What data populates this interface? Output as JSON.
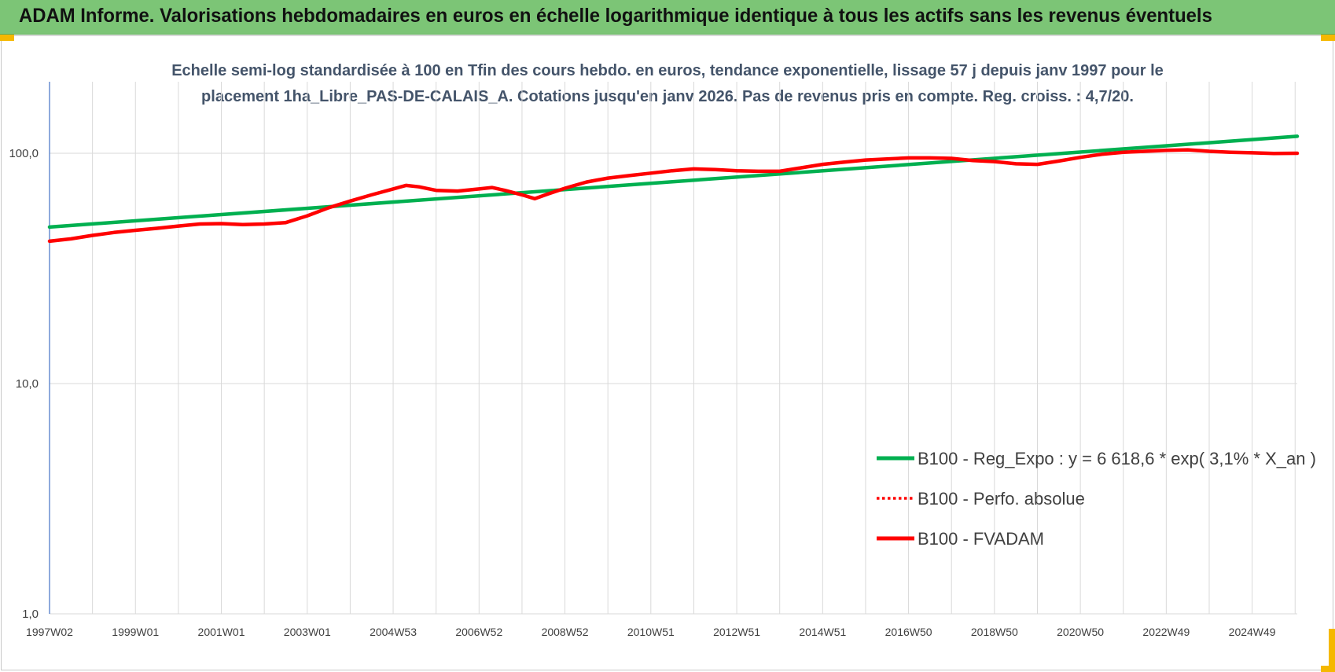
{
  "header": {
    "title": "ADAM Informe. Valorisations hebdomadaires en euros en échelle logarithmique identique à tous les actifs sans les revenus éventuels"
  },
  "colors": {
    "title_bar": "#7cc576",
    "corner_marks": "#f5b800",
    "regression_line": "#00b050",
    "fvadam_line": "#ff0000",
    "gridline": "#d9d9d9"
  },
  "chart_data": {
    "type": "line",
    "title_lines": [
      "Echelle semi-log standardisée à 100 en Tfin des cours hebdo. en euros, tendance exponentielle, lissage 57 j depuis janv 1997 pour le",
      "placement 1ha_Libre_PAS-DE-CALAIS_A. Cotations jusqu'en janv 2026. Pas de revenus pris en compte. Reg. croiss. : 4,7/20."
    ],
    "y_scale": "log",
    "ylim": [
      1,
      200
    ],
    "y_ticks": [
      {
        "value": 1,
        "label": "1,0"
      },
      {
        "value": 10,
        "label": "10,0"
      },
      {
        "value": 100,
        "label": "100,0"
      }
    ],
    "xlim": [
      1997.0,
      2026.05
    ],
    "x_ticks": [
      {
        "x": 1997.0,
        "label": "1997W02"
      },
      {
        "x": 1999.0,
        "label": "1999W01"
      },
      {
        "x": 2001.0,
        "label": "2001W01"
      },
      {
        "x": 2003.0,
        "label": "2003W01"
      },
      {
        "x": 2005.0,
        "label": "2004W53"
      },
      {
        "x": 2007.0,
        "label": "2006W52"
      },
      {
        "x": 2009.0,
        "label": "2008W52"
      },
      {
        "x": 2011.0,
        "label": "2010W51"
      },
      {
        "x": 2013.0,
        "label": "2012W51"
      },
      {
        "x": 2015.0,
        "label": "2014W51"
      },
      {
        "x": 2017.0,
        "label": "2016W50"
      },
      {
        "x": 2019.0,
        "label": "2018W50"
      },
      {
        "x": 2021.0,
        "label": "2020W50"
      },
      {
        "x": 2023.0,
        "label": "2022W49"
      },
      {
        "x": 2025.0,
        "label": "2024W49"
      }
    ],
    "grid": true,
    "legend_position": "lower-right",
    "series": [
      {
        "name": "B100 - Reg_Expo : y = 6 618,6 * exp( 3,1% *  X_an )",
        "color": "#00b050",
        "style": "solid",
        "points": [
          [
            1997.0,
            47.8
          ],
          [
            2026.05,
            118.5
          ]
        ]
      },
      {
        "name": "B100 - Perfo. absolue",
        "color": "#ff0000",
        "style": "dotted",
        "points": []
      },
      {
        "name": "B100 - FVADAM",
        "color": "#ff0000",
        "style": "solid",
        "points": [
          [
            1997.0,
            41.5
          ],
          [
            1997.5,
            42.5
          ],
          [
            1998.0,
            44.0
          ],
          [
            1998.5,
            45.3
          ],
          [
            1999.0,
            46.3
          ],
          [
            1999.5,
            47.2
          ],
          [
            2000.0,
            48.3
          ],
          [
            2000.5,
            49.3
          ],
          [
            2001.0,
            49.5
          ],
          [
            2001.5,
            49.0
          ],
          [
            2002.0,
            49.3
          ],
          [
            2002.5,
            50.0
          ],
          [
            2003.0,
            53.5
          ],
          [
            2003.5,
            58.0
          ],
          [
            2004.0,
            62.0
          ],
          [
            2004.5,
            66.0
          ],
          [
            2005.0,
            70.0
          ],
          [
            2005.3,
            72.5
          ],
          [
            2005.6,
            71.5
          ],
          [
            2006.0,
            69.0
          ],
          [
            2006.5,
            68.5
          ],
          [
            2007.0,
            70.0
          ],
          [
            2007.3,
            71.0
          ],
          [
            2007.6,
            69.0
          ],
          [
            2008.0,
            66.0
          ],
          [
            2008.3,
            63.5
          ],
          [
            2008.6,
            66.5
          ],
          [
            2009.0,
            70.5
          ],
          [
            2009.5,
            75.0
          ],
          [
            2010.0,
            78.0
          ],
          [
            2010.5,
            80.0
          ],
          [
            2011.0,
            82.0
          ],
          [
            2011.5,
            84.0
          ],
          [
            2012.0,
            85.5
          ],
          [
            2012.5,
            85.0
          ],
          [
            2013.0,
            84.0
          ],
          [
            2013.5,
            83.5
          ],
          [
            2014.0,
            83.5
          ],
          [
            2014.5,
            86.5
          ],
          [
            2015.0,
            89.5
          ],
          [
            2015.5,
            91.5
          ],
          [
            2016.0,
            93.5
          ],
          [
            2016.5,
            94.5
          ],
          [
            2017.0,
            95.5
          ],
          [
            2017.5,
            95.5
          ],
          [
            2018.0,
            95.0
          ],
          [
            2018.5,
            93.0
          ],
          [
            2019.0,
            92.0
          ],
          [
            2019.5,
            90.0
          ],
          [
            2020.0,
            89.5
          ],
          [
            2020.5,
            92.5
          ],
          [
            2021.0,
            96.0
          ],
          [
            2021.5,
            99.0
          ],
          [
            2022.0,
            101.0
          ],
          [
            2022.5,
            102.0
          ],
          [
            2023.0,
            103.0
          ],
          [
            2023.5,
            103.5
          ],
          [
            2024.0,
            102.0
          ],
          [
            2024.5,
            101.0
          ],
          [
            2025.0,
            100.5
          ],
          [
            2025.5,
            99.8
          ],
          [
            2026.05,
            100.0
          ]
        ]
      }
    ]
  }
}
